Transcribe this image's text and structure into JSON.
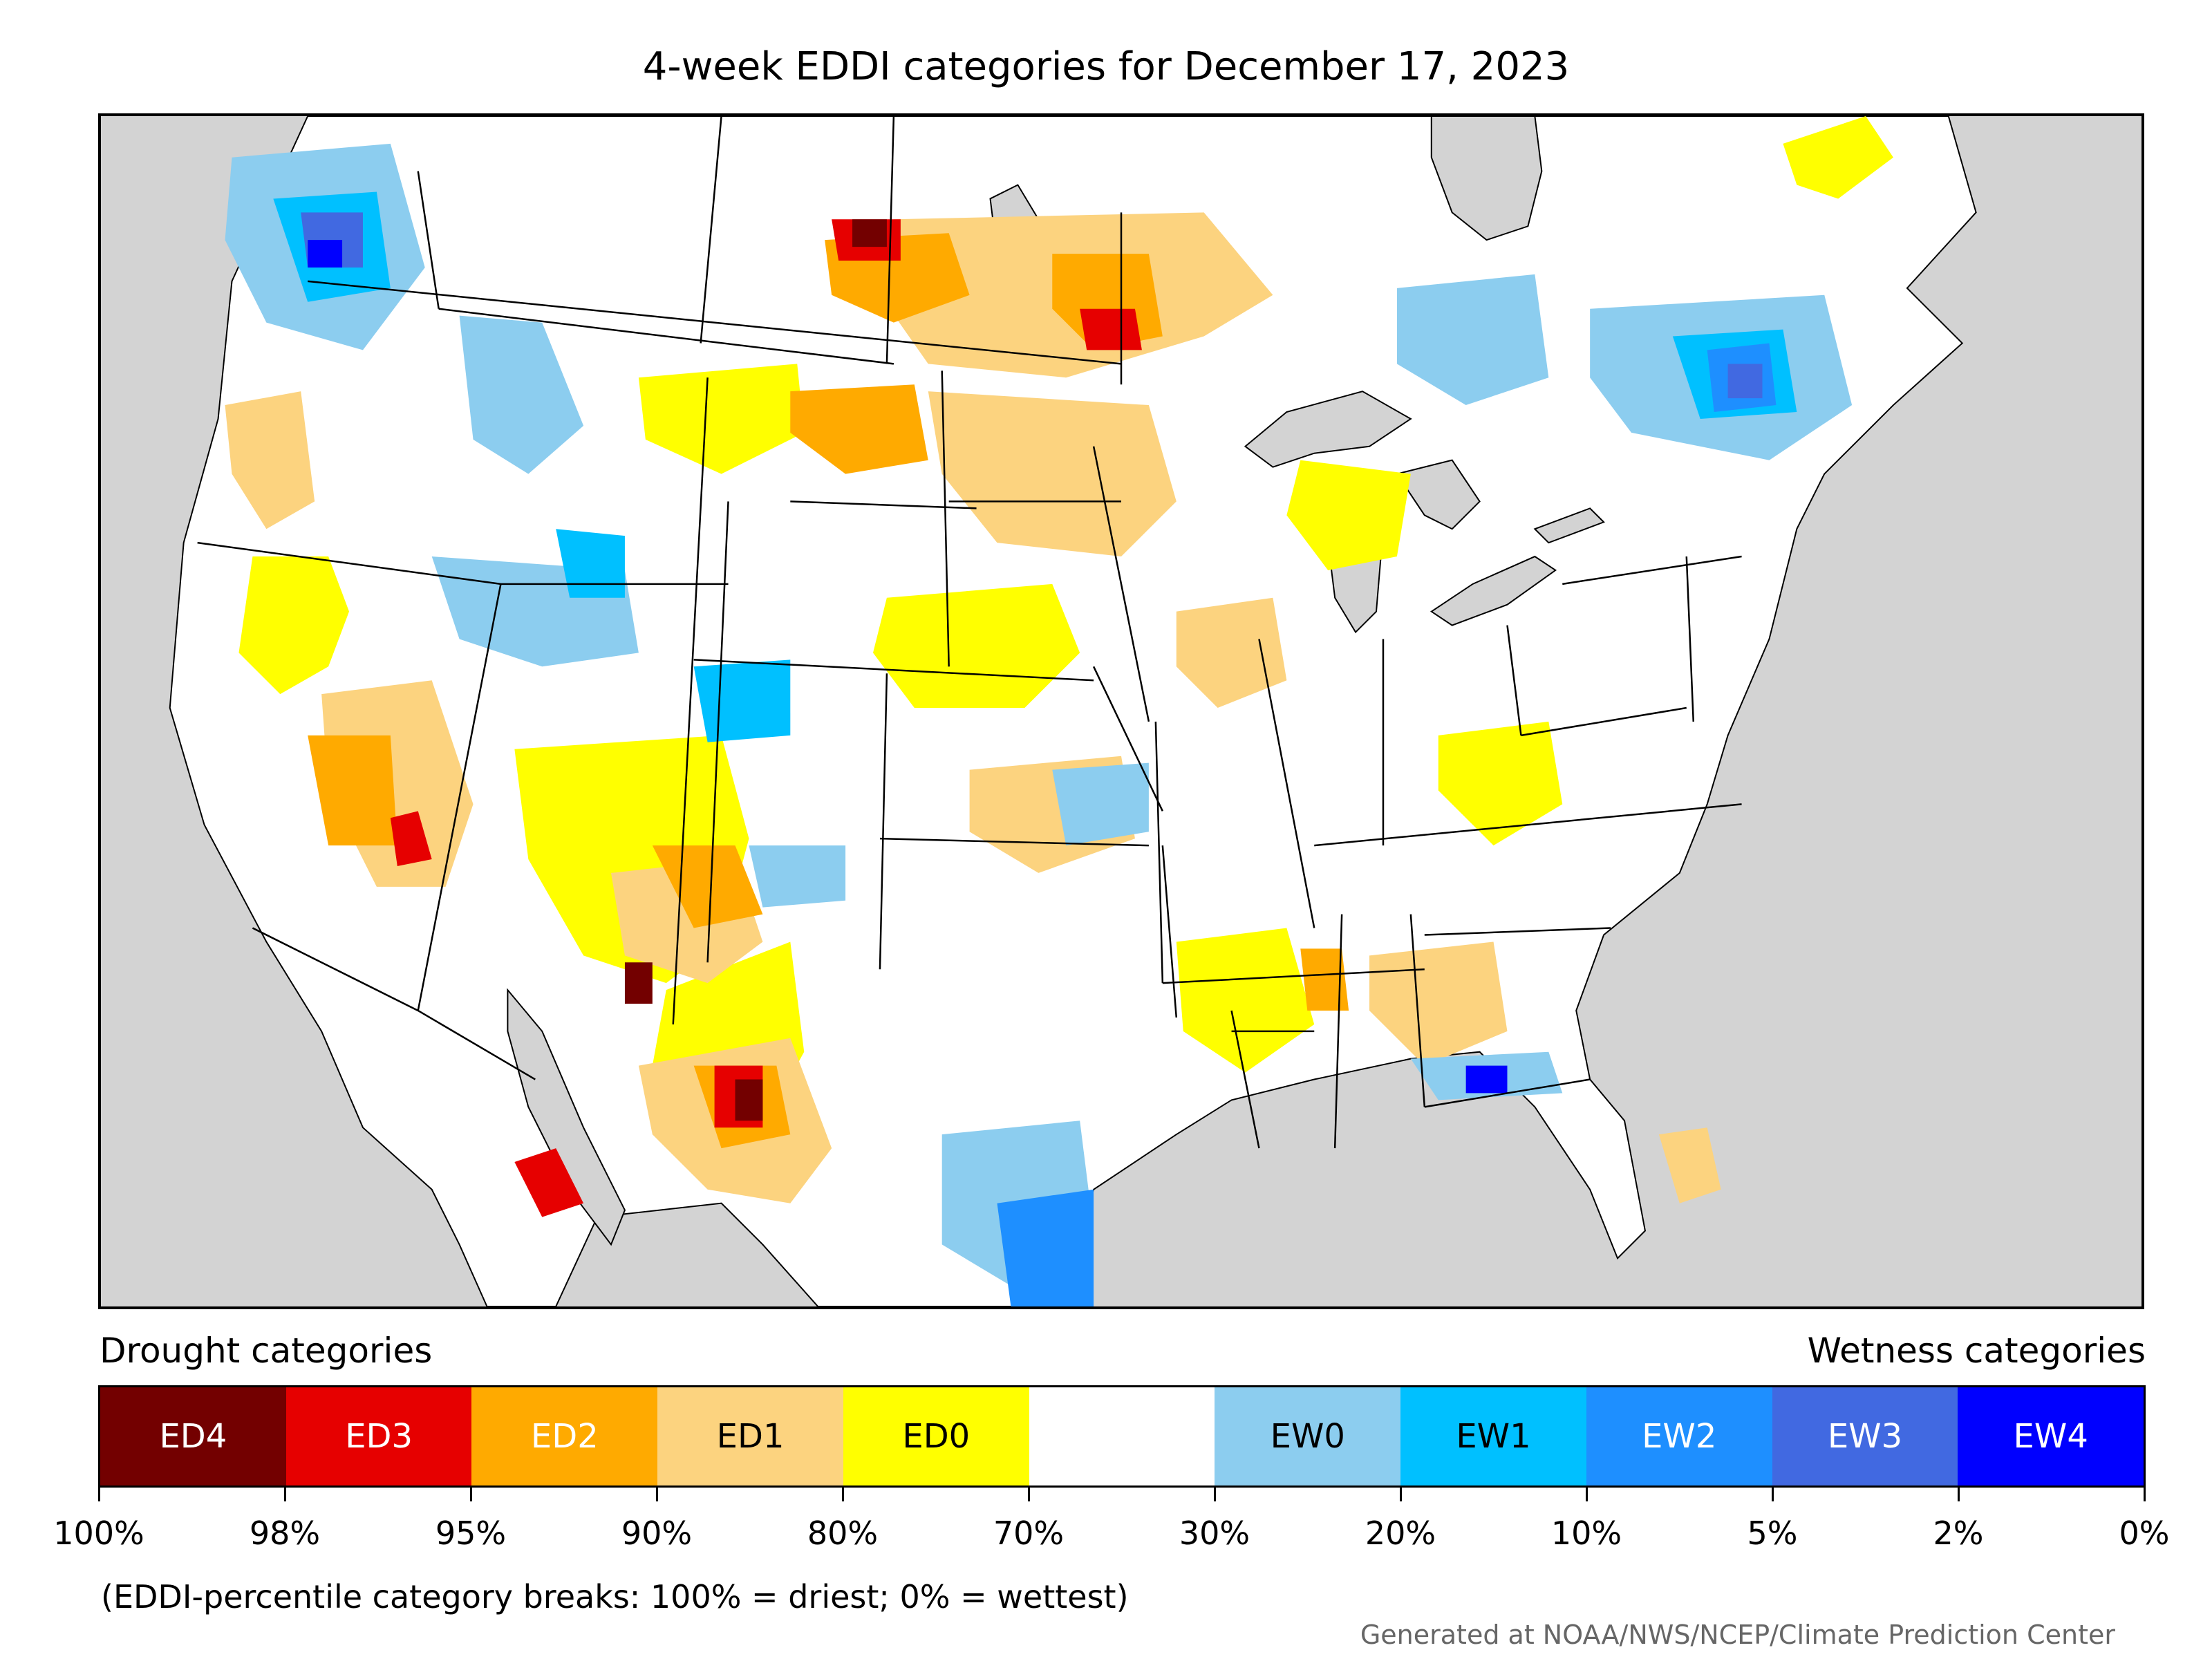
{
  "title": "4-week EDDI categories for December 17, 2023",
  "map": {
    "background_color": "#d3d3d3",
    "land_color": "#ffffff",
    "boundary_color": "#000000"
  },
  "legend": {
    "drought_heading": "Drought categories",
    "wetness_heading": "Wetness categories",
    "categories": [
      {
        "label": "ED4",
        "color": "#730000",
        "text_color": "#ffffff"
      },
      {
        "label": "ED3",
        "color": "#e60000",
        "text_color": "#ffffff"
      },
      {
        "label": "ED2",
        "color": "#ffaa00",
        "text_color": "#ffffff"
      },
      {
        "label": "ED1",
        "color": "#fcd37f",
        "text_color": "#000000"
      },
      {
        "label": "ED0",
        "color": "#ffff00",
        "text_color": "#000000"
      },
      {
        "label": "",
        "color": "#ffffff",
        "text_color": "#000000"
      },
      {
        "label": "EW0",
        "color": "#8ccdef",
        "text_color": "#000000"
      },
      {
        "label": "EW1",
        "color": "#00c0ff",
        "text_color": "#000000"
      },
      {
        "label": "EW2",
        "color": "#1e8fff",
        "text_color": "#ffffff"
      },
      {
        "label": "EW3",
        "color": "#4169e1",
        "text_color": "#ffffff"
      },
      {
        "label": "EW4",
        "color": "#0000ff",
        "text_color": "#ffffff"
      }
    ],
    "breaks": [
      "100%",
      "98%",
      "95%",
      "90%",
      "80%",
      "70%",
      "30%",
      "20%",
      "10%",
      "5%",
      "2%",
      "0%"
    ]
  },
  "note": "(EDDI-percentile category breaks: 100% = driest; 0% = wettest)",
  "credit": "Generated at NOAA/NWS/NCEP/Climate Prediction Center"
}
